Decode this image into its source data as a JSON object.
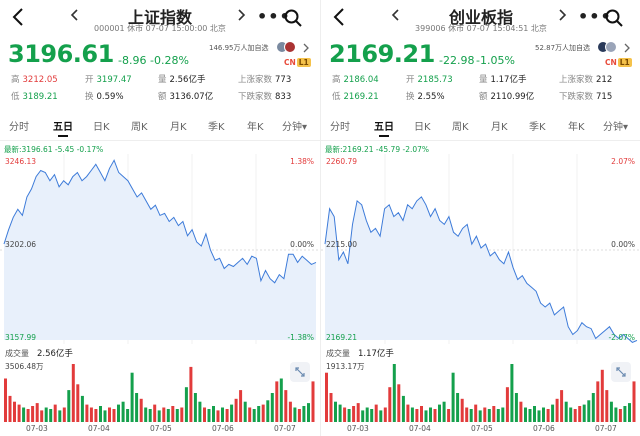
{
  "colors": {
    "up": "#e23b3b",
    "down": "#14a04c",
    "line": "#3d7bd9",
    "area": "#e8f0fb"
  },
  "panels": [
    {
      "title": "上证指数",
      "code_status": "000001  休市 07-07 15:00:00 北京",
      "price": "3196.61",
      "change": "-8.96",
      "change_pct": "-0.28%",
      "followers": "146.95万人加自选",
      "badge_cn": "CN",
      "badge_l1": "L1",
      "stats": {
        "high_label": "高",
        "high": "3212.05",
        "low_label": "低",
        "low": "3189.21",
        "open_label": "开",
        "open": "3197.47",
        "turnover_label": "换",
        "turnover": "0.59%",
        "volume_label": "量",
        "volume": "2.56亿手",
        "amount_label": "额",
        "amount": "3136.07亿",
        "up_count_label": "上涨家数",
        "up_count": "773",
        "down_count_label": "下跌家数",
        "down_count": "833"
      },
      "tabs": [
        "分时",
        "五日",
        "日K",
        "周K",
        "月K",
        "季K",
        "年K",
        "分钟▾"
      ],
      "active_tab": 1,
      "latest": "最新:3196.61  -5.45  -0.17%",
      "axis": {
        "top": "3246.13",
        "mid": "3202.06",
        "bottom": "3157.99",
        "top_pct": "1.38%",
        "mid_pct": "0.00%",
        "bottom_pct": "-1.38%"
      },
      "volume_label": "成交量",
      "volume_value": "2.56亿手",
      "volume_max": "3506.48万",
      "dates": [
        "07-03",
        "07-04",
        "07-05",
        "07-06",
        "07-07"
      ]
    },
    {
      "title": "创业板指",
      "code_status": "399006  休市 07-07 15:04:51 北京",
      "price": "2169.21",
      "change": "-22.98",
      "change_pct": "-1.05%",
      "followers": "52.87万人加自选",
      "badge_cn": "CN",
      "badge_l1": "L1",
      "stats": {
        "high_label": "高",
        "high": "2186.04",
        "low_label": "低",
        "low": "2169.21",
        "open_label": "开",
        "open": "2185.73",
        "turnover_label": "换",
        "turnover": "2.55%",
        "volume_label": "量",
        "volume": "1.17亿手",
        "amount_label": "额",
        "amount": "2110.99亿",
        "up_count_label": "上涨家数",
        "up_count": "212",
        "down_count_label": "下跌家数",
        "down_count": "715"
      },
      "tabs": [
        "分时",
        "五日",
        "日K",
        "周K",
        "月K",
        "季K",
        "年K",
        "分钟▾"
      ],
      "active_tab": 1,
      "latest": "最新:2169.21  -45.79  -2.07%",
      "axis": {
        "top": "2260.79",
        "mid": "2215.00",
        "bottom": "2169.21",
        "top_pct": "2.07%",
        "mid_pct": "0.00%",
        "bottom_pct": "-2.07%"
      },
      "volume_label": "成交量",
      "volume_value": "1.17亿手",
      "volume_max": "1913.17万",
      "dates": [
        "07-03",
        "07-04",
        "07-05",
        "07-06",
        "07-07"
      ]
    }
  ],
  "chart_data": [
    {
      "type": "line",
      "title": "上证指数 五日",
      "ylim": [
        3157.99,
        3246.13
      ],
      "baseline": 3202.06,
      "values": [
        3205,
        3212,
        3218,
        3222,
        3219,
        3228,
        3232,
        3238,
        3241,
        3240,
        3236,
        3239,
        3233,
        3236,
        3234,
        3238,
        3240,
        3236,
        3238,
        3241,
        3244,
        3240,
        3236,
        3242,
        3246,
        3240,
        3238,
        3236,
        3232,
        3228,
        3230,
        3226,
        3222,
        3224,
        3219,
        3220,
        3216,
        3218,
        3214,
        3216,
        3209,
        3212,
        3206,
        3204,
        3210,
        3202,
        3197,
        3198,
        3193,
        3195,
        3194,
        3196,
        3198,
        3195,
        3199,
        3198,
        3187,
        3192,
        3188,
        3186,
        3190,
        3188,
        3200,
        3200,
        3196,
        3199,
        3197,
        3195,
        3196
      ],
      "volume": [
        30,
        18,
        14,
        12,
        10,
        9,
        11,
        13,
        8,
        10,
        9,
        12,
        8,
        10,
        22,
        40,
        26,
        18,
        12,
        10,
        9,
        11,
        8,
        10,
        9,
        12,
        14,
        9,
        34,
        20,
        16,
        10,
        9,
        12,
        8,
        10,
        9,
        11,
        9,
        10,
        24,
        38,
        20,
        14,
        10,
        9,
        11,
        8,
        10,
        9,
        12,
        16,
        22,
        14,
        10,
        9,
        11,
        12,
        15,
        20,
        28,
        30,
        22,
        14,
        10,
        9,
        11,
        13,
        28
      ]
    },
    {
      "type": "line",
      "title": "创业板指 五日",
      "ylim": [
        2169.21,
        2260.79
      ],
      "baseline": 2215.0,
      "values": [
        2218,
        2236,
        2232,
        2210,
        2214,
        2208,
        2228,
        2240,
        2238,
        2230,
        2224,
        2226,
        2222,
        2236,
        2238,
        2232,
        2234,
        2230,
        2238,
        2236,
        2240,
        2242,
        2238,
        2232,
        2236,
        2230,
        2228,
        2232,
        2224,
        2222,
        2226,
        2228,
        2218,
        2222,
        2216,
        2218,
        2212,
        2214,
        2210,
        2208,
        2214,
        2206,
        2200,
        2202,
        2198,
        2196,
        2194,
        2188,
        2186,
        2188,
        2182,
        2184,
        2186,
        2176,
        2172,
        2174,
        2178,
        2176,
        2175,
        2170,
        2172,
        2174,
        2176,
        2172,
        2170,
        2172,
        2170,
        2168,
        2169
      ],
      "volume": [
        34,
        20,
        14,
        12,
        10,
        9,
        11,
        13,
        8,
        10,
        9,
        12,
        8,
        10,
        24,
        40,
        26,
        18,
        12,
        10,
        9,
        11,
        8,
        10,
        9,
        12,
        14,
        9,
        34,
        20,
        16,
        10,
        9,
        12,
        8,
        10,
        9,
        11,
        9,
        10,
        24,
        40,
        20,
        14,
        10,
        9,
        11,
        8,
        10,
        9,
        12,
        16,
        22,
        14,
        10,
        9,
        11,
        12,
        15,
        20,
        28,
        36,
        22,
        14,
        10,
        9,
        11,
        13,
        28
      ]
    }
  ]
}
